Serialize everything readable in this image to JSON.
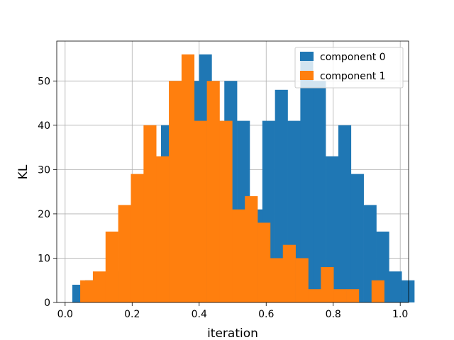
{
  "chart_data": {
    "type": "bar",
    "title": "",
    "xlabel": "iteration",
    "ylabel": "KL",
    "xlim": [
      -0.025,
      1.025
    ],
    "ylim": [
      0,
      59
    ],
    "x_ticks": [
      0.0,
      0.2,
      0.4,
      0.6,
      0.8,
      1.0
    ],
    "x_tick_labels": [
      "0.0",
      "0.2",
      "0.4",
      "0.6",
      "0.8",
      "1.0"
    ],
    "y_ticks": [
      0,
      10,
      20,
      30,
      40,
      50
    ],
    "y_tick_labels": [
      "0",
      "10",
      "20",
      "30",
      "40",
      "50"
    ],
    "grid": true,
    "legend_position": "upper-right",
    "series": [
      {
        "name": "component 0",
        "color": "#1f77b4",
        "bin_start": 0.0215,
        "bin_width": 0.0378,
        "values": [
          4,
          5,
          5,
          7,
          16,
          22,
          29,
          40,
          33,
          50,
          56,
          41,
          50,
          41,
          21,
          41,
          48,
          41,
          56,
          50,
          33,
          40,
          29,
          22,
          16,
          7,
          5
        ]
      },
      {
        "name": "component 1",
        "color": "#ff7f0e",
        "bin_start": 0.045,
        "bin_width": 0.0378,
        "values": [
          5,
          7,
          16,
          22,
          29,
          40,
          33,
          50,
          56,
          41,
          50,
          41,
          21,
          24,
          18,
          10,
          13,
          10,
          3,
          8,
          3,
          3,
          0,
          5
        ]
      }
    ]
  }
}
